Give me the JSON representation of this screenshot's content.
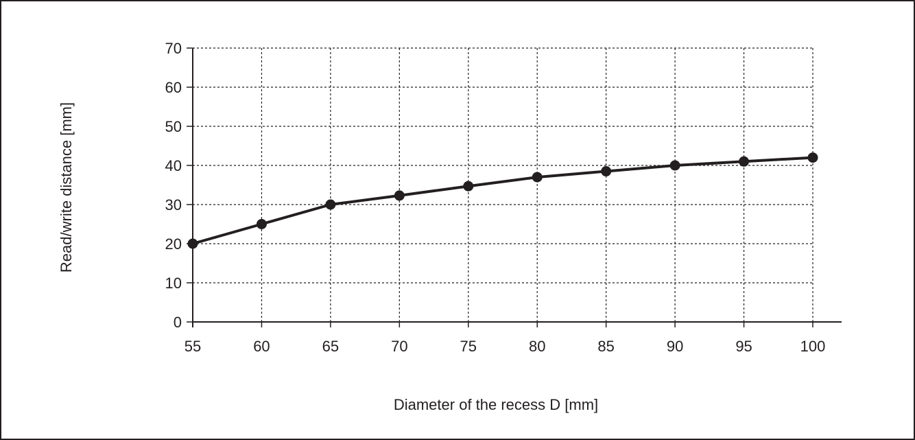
{
  "chart_data": {
    "type": "line",
    "title": "",
    "xlabel": "Diameter of the recess D [mm]",
    "ylabel": "Read/write distance [mm]",
    "xlim": [
      55,
      100
    ],
    "ylim": [
      0,
      70
    ],
    "x_ticks": [
      "55",
      "60",
      "65",
      "70",
      "75",
      "80",
      "85",
      "90",
      "95",
      "100"
    ],
    "y_ticks": [
      "0",
      "10",
      "20",
      "30",
      "40",
      "50",
      "60",
      "70"
    ],
    "grid": true,
    "grid_style": "dotted",
    "series": [
      {
        "x": [
          55,
          60,
          65,
          70,
          75,
          80,
          85,
          90,
          95,
          100
        ],
        "values": [
          20,
          25,
          30,
          32.3,
          34.7,
          37,
          38.5,
          40,
          41,
          42
        ],
        "color": "#231f20",
        "marker": "circle"
      }
    ]
  }
}
